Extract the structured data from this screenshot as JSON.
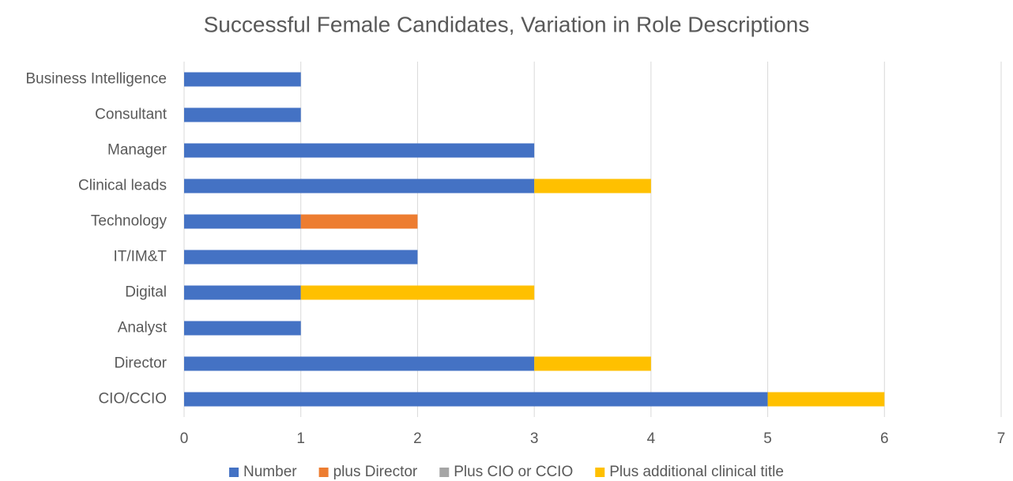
{
  "chart_data": {
    "type": "stacked_bar_horizontal",
    "title": "Successful Female Candidates, Variation in Role Descriptions",
    "categories": [
      "Business Intelligence",
      "Consultant",
      "Manager",
      "Clinical leads",
      "Technology",
      "IT/IM&T",
      "Digital",
      "Analyst",
      "Director",
      "CIO/CCIO"
    ],
    "series": [
      {
        "name": "Number",
        "color": "#4472c4",
        "values": [
          1,
          1,
          3,
          3,
          1,
          2,
          1,
          1,
          3,
          5
        ]
      },
      {
        "name": "plus Director",
        "color": "#ed7d31",
        "values": [
          0,
          0,
          0,
          0,
          1,
          0,
          0,
          0,
          0,
          0
        ]
      },
      {
        "name": "Plus CIO or CCIO",
        "color": "#a5a5a5",
        "values": [
          0,
          0,
          0,
          0,
          0,
          0,
          0,
          0,
          0,
          0
        ]
      },
      {
        "name": "Plus additional clinical title",
        "color": "#ffc000",
        "values": [
          0,
          0,
          0,
          1,
          0,
          0,
          2,
          0,
          1,
          1
        ]
      }
    ],
    "xlim": [
      0,
      7
    ],
    "xticks": [
      0,
      1,
      2,
      3,
      4,
      5,
      6,
      7
    ],
    "grid": true,
    "legend": "bottom"
  }
}
